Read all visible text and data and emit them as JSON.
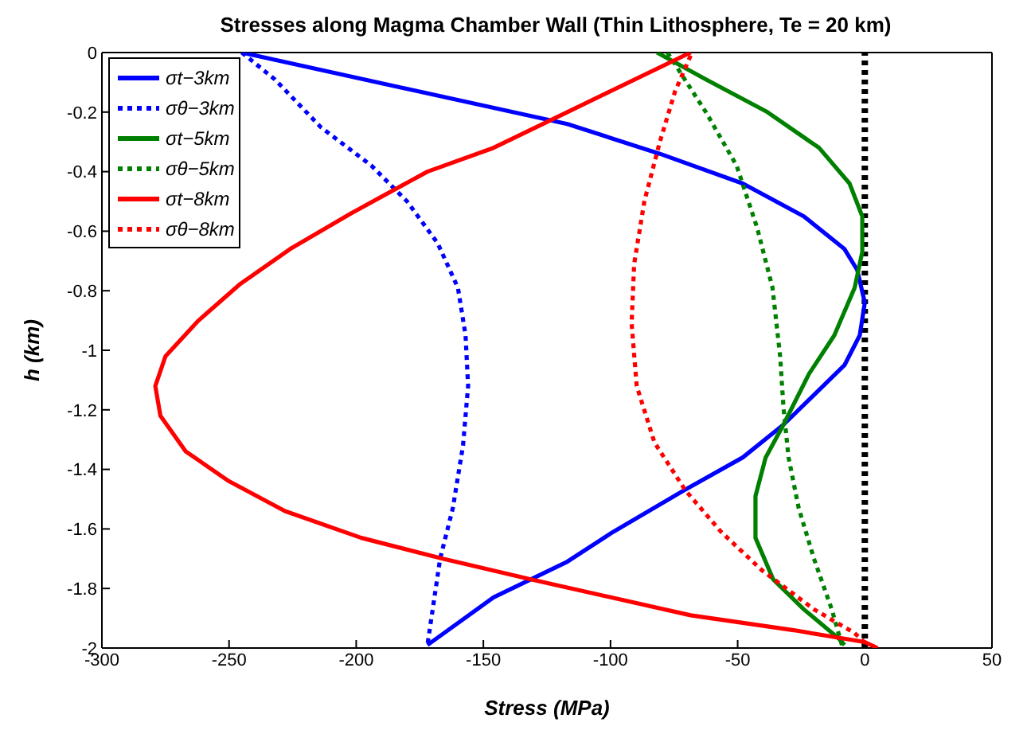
{
  "chart_data": {
    "type": "line",
    "title": "Stresses along Magma Chamber Wall (Thin Lithosphere, Te = 20 km)",
    "xlabel": "Stress (MPa)",
    "ylabel": "h (km)",
    "xlim": [
      -300,
      50
    ],
    "xticks": [
      -300,
      -250,
      -200,
      -150,
      -100,
      -50,
      0,
      50
    ],
    "ylim": [
      -2,
      0
    ],
    "yticks": [
      -2,
      -1.8,
      -1.6,
      -1.4,
      -1.2,
      -1,
      -0.8,
      -0.6,
      -0.4,
      -0.2,
      0
    ],
    "grid": false,
    "legend": "top left",
    "marker": "none",
    "ref_lines": [
      {
        "axis": "x",
        "value": 0,
        "color": "#000000",
        "line_style": "dotted"
      }
    ],
    "series": [
      {
        "name": "σt−3km",
        "color": "#0000ff",
        "line_style": "solid",
        "x": [
          -245,
          -117,
          -80.6,
          -48,
          -24,
          -8,
          -3,
          0,
          -2,
          -8,
          -20,
          -32,
          -48,
          -71,
          -99,
          -117,
          -146,
          -172
        ],
        "values": [
          0,
          -0.24,
          -0.34,
          -0.44,
          -0.55,
          -0.66,
          -0.73,
          -0.84,
          -0.95,
          -1.05,
          -1.15,
          -1.25,
          -1.36,
          -1.47,
          -1.61,
          -1.71,
          -1.83,
          -1.99
        ]
      },
      {
        "name": "σθ−3km",
        "color": "#0000ff",
        "line_style": "dotted",
        "x": [
          -245,
          -232,
          -214,
          -194,
          -180,
          -168,
          -160,
          -157,
          -156,
          -158,
          -162,
          -167,
          -172
        ],
        "values": [
          0,
          -0.09,
          -0.25,
          -0.38,
          -0.5,
          -0.64,
          -0.79,
          -0.95,
          -1.12,
          -1.32,
          -1.53,
          -1.7,
          -1.99
        ]
      },
      {
        "name": "σt−5km",
        "color": "#008000",
        "line_style": "solid",
        "x": [
          -81.7,
          -62.5,
          -38.3,
          -18,
          -6,
          -1,
          -1,
          -4,
          -12,
          -22,
          -32,
          -39,
          -43,
          -43,
          -36,
          -24,
          -10,
          -8
        ],
        "values": [
          0,
          -0.09,
          -0.2,
          -0.32,
          -0.44,
          -0.55,
          -0.67,
          -0.79,
          -0.95,
          -1.08,
          -1.25,
          -1.36,
          -1.49,
          -1.63,
          -1.77,
          -1.87,
          -1.97,
          -1.99
        ]
      },
      {
        "name": "σθ−5km",
        "color": "#008000",
        "line_style": "dotted",
        "x": [
          -77.6,
          -74.6,
          -62.5,
          -50.4,
          -42.3,
          -36.3,
          -33.3,
          -32,
          -30,
          -26,
          -20,
          -13,
          -9
        ],
        "values": [
          0,
          -0.04,
          -0.2,
          -0.38,
          -0.59,
          -0.79,
          -1.02,
          -1.19,
          -1.36,
          -1.53,
          -1.7,
          -1.87,
          -1.99
        ]
      },
      {
        "name": "σt−8km",
        "color": "#ff0000",
        "line_style": "solid",
        "x": [
          -68.5,
          -117,
          -146,
          -172,
          -202,
          -226,
          -246,
          -262,
          -275,
          -279,
          -277,
          -267,
          -250,
          -228,
          -198,
          -166,
          -131,
          -68.5,
          -28,
          0,
          5
        ],
        "values": [
          0,
          -0.2,
          -0.32,
          -0.4,
          -0.54,
          -0.66,
          -0.78,
          -0.9,
          -1.02,
          -1.12,
          -1.22,
          -1.34,
          -1.44,
          -1.54,
          -1.63,
          -1.7,
          -1.77,
          -1.89,
          -1.94,
          -1.98,
          -2
        ]
      },
      {
        "name": "σθ−8km",
        "color": "#ff0000",
        "line_style": "dotted",
        "x": [
          -68.5,
          -74.6,
          -80.6,
          -86.7,
          -90.7,
          -91.7,
          -89.7,
          -82.7,
          -70.6,
          -56.5,
          -40.3,
          -20,
          -4,
          1
        ],
        "values": [
          -0.01,
          -0.13,
          -0.3,
          -0.5,
          -0.71,
          -0.91,
          -1.12,
          -1.31,
          -1.47,
          -1.61,
          -1.74,
          -1.87,
          -1.95,
          -1.99
        ]
      }
    ]
  }
}
